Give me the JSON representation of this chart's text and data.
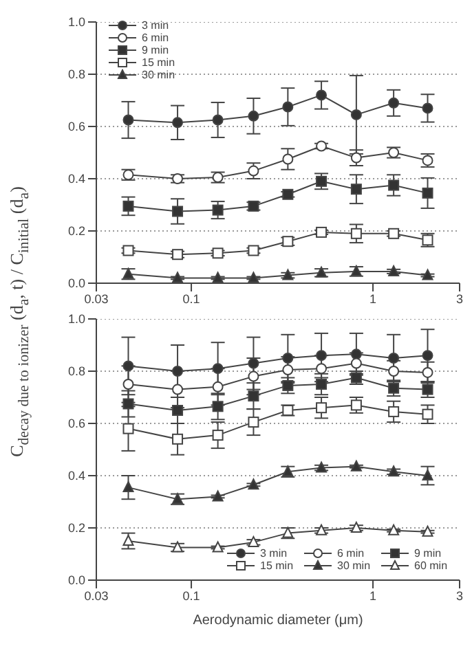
{
  "chart_data": [
    {
      "type": "line",
      "ylabel": "C$_{decay due to ionizer}$ (d$_{a}$, t) / C$_{initial}$ (d$_{a}$)",
      "x": [
        0.045,
        0.084,
        0.14,
        0.22,
        0.34,
        0.52,
        0.81,
        1.3,
        2.0
      ],
      "log": "x",
      "xlim": [
        0.03,
        3
      ],
      "xticks": [
        0.03,
        0.1,
        1,
        3
      ],
      "ylim": [
        0,
        1
      ],
      "yticks": [
        {
          "value": 0,
          "label": "0.0"
        },
        {
          "value": 0.2,
          "label": "0.2"
        },
        {
          "value": 0.4,
          "label": "0.4"
        },
        {
          "value": 0.6,
          "label": "0.6"
        },
        {
          "value": 0.8,
          "label": "0.8"
        },
        {
          "value": 1,
          "label": "1.0"
        }
      ],
      "grid": "y",
      "legend": "top left",
      "series": [
        {
          "name": "3 min",
          "color": "#333333",
          "marker": "circle",
          "values": [
            0.625,
            0.615,
            0.625,
            0.64,
            0.675,
            0.72,
            0.645,
            0.69,
            0.67
          ],
          "errors": [
            0.07,
            0.065,
            0.067,
            0.068,
            0.072,
            0.053,
            0.15,
            0.05,
            0.053
          ]
        },
        {
          "name": "6 min",
          "color": "#ffffff",
          "marker": "circle",
          "values": [
            0.415,
            0.4,
            0.405,
            0.43,
            0.475,
            0.525,
            0.48,
            0.5,
            0.47
          ],
          "errors": [
            0.02,
            0.015,
            0.02,
            0.03,
            0.04,
            0.01,
            0.03,
            0.02,
            0.025
          ]
        },
        {
          "name": "9 min",
          "color": "#333333",
          "marker": "square",
          "values": [
            0.295,
            0.275,
            0.28,
            0.295,
            0.34,
            0.39,
            0.36,
            0.375,
            0.345
          ],
          "errors": [
            0.035,
            0.048,
            0.033,
            0.015,
            0.01,
            0.03,
            0.055,
            0.04,
            0.058
          ]
        },
        {
          "name": "15 min",
          "color": "#ffffff",
          "marker": "square",
          "values": [
            0.125,
            0.11,
            0.115,
            0.125,
            0.16,
            0.195,
            0.19,
            0.19,
            0.165
          ],
          "errors": [
            0.01,
            0.012,
            0.01,
            0.01,
            0.015,
            0.008,
            0.035,
            0.01,
            0.025
          ]
        },
        {
          "name": "30 min",
          "color": "#333333",
          "marker": "triangle",
          "values": [
            0.035,
            0.02,
            0.02,
            0.02,
            0.03,
            0.04,
            0.045,
            0.045,
            0.03
          ],
          "errors": [
            0.02,
            0.005,
            0.005,
            0.005,
            0.01,
            0.015,
            0.018,
            0.008,
            0.005
          ]
        }
      ]
    },
    {
      "type": "line",
      "xlabel": "Aerodynamic diameter (μm)",
      "x": [
        0.045,
        0.084,
        0.14,
        0.22,
        0.34,
        0.52,
        0.81,
        1.3,
        2.0
      ],
      "log": "x",
      "xlim": [
        0.03,
        3
      ],
      "xticks": [
        0.03,
        0.1,
        1,
        3
      ],
      "ylim": [
        0,
        1
      ],
      "yticks": [
        {
          "value": 0,
          "label": "0.0"
        },
        {
          "value": 0.2,
          "label": "0.2"
        },
        {
          "value": 0.4,
          "label": "0.4"
        },
        {
          "value": 0.6,
          "label": "0.6"
        },
        {
          "value": 0.8,
          "label": "0.8"
        },
        {
          "value": 1,
          "label": "1.0"
        }
      ],
      "grid": "y",
      "legend": "bottom right",
      "series": [
        {
          "name": "3 min",
          "color": "#333333",
          "marker": "circle",
          "values": [
            0.82,
            0.8,
            0.81,
            0.83,
            0.85,
            0.86,
            0.865,
            0.85,
            0.86
          ],
          "errors": [
            0.11,
            0.1,
            0.1,
            0.1,
            0.09,
            0.085,
            0.08,
            0.09,
            0.1
          ]
        },
        {
          "name": "6 min",
          "color": "#ffffff",
          "marker": "circle",
          "values": [
            0.75,
            0.73,
            0.74,
            0.78,
            0.805,
            0.81,
            0.83,
            0.8,
            0.795
          ],
          "errors": [
            0.07,
            0.07,
            0.07,
            0.07,
            0.05,
            0.05,
            0.04,
            0.04,
            0.04
          ]
        },
        {
          "name": "9 min",
          "color": "#333333",
          "marker": "square",
          "values": [
            0.675,
            0.65,
            0.665,
            0.705,
            0.745,
            0.75,
            0.775,
            0.735,
            0.73
          ],
          "errors": [
            0.05,
            0.05,
            0.05,
            0.05,
            0.03,
            0.04,
            0.025,
            0.03,
            0.03
          ]
        },
        {
          "name": "15 min",
          "color": "#ffffff",
          "marker": "square",
          "values": [
            0.58,
            0.54,
            0.555,
            0.605,
            0.65,
            0.66,
            0.67,
            0.645,
            0.635
          ],
          "errors": [
            0.085,
            0.06,
            0.05,
            0.05,
            0.02,
            0.04,
            0.03,
            0.04,
            0.035
          ]
        },
        {
          "name": "30 min",
          "color": "#333333",
          "marker": "triangle",
          "values": [
            0.355,
            0.31,
            0.32,
            0.365,
            0.415,
            0.43,
            0.435,
            0.415,
            0.4
          ],
          "errors": [
            0.045,
            0.02,
            0.005,
            0.005,
            0.02,
            0.01,
            0.005,
            0.01,
            0.035
          ]
        },
        {
          "name": "60 min",
          "color": "#ffffff",
          "marker": "triangle",
          "values": [
            0.15,
            0.125,
            0.125,
            0.145,
            0.18,
            0.19,
            0.2,
            0.19,
            0.185
          ],
          "errors": [
            0.03,
            0.015,
            0.005,
            0.01,
            0.02,
            0.01,
            0.01,
            0.005,
            0.005
          ]
        }
      ]
    }
  ]
}
